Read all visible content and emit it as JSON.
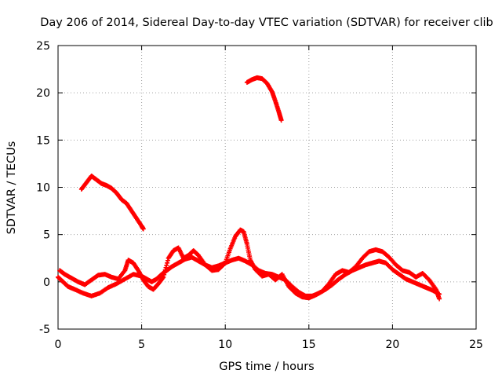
{
  "chart_data": {
    "type": "scatter",
    "title": "Day 206 of 2014, Sidereal Day-to-day VTEC variation (SDTVAR) for receiver clib",
    "xlabel": "GPS time / hours",
    "ylabel": "SDTVAR / TECUs",
    "xlim": [
      0,
      25
    ],
    "ylim": [
      -5,
      25
    ],
    "xticks": [
      0,
      5,
      10,
      15,
      20,
      25
    ],
    "yticks": [
      -5,
      0,
      5,
      10,
      15,
      20,
      25
    ],
    "grid": true,
    "marker": "+",
    "color": "#ff0000",
    "series": [
      {
        "name": "track-1",
        "points": [
          [
            0.0,
            0.5
          ],
          [
            0.3,
            0.0
          ],
          [
            0.6,
            -0.5
          ],
          [
            1.0,
            -0.8
          ],
          [
            1.5,
            -1.2
          ],
          [
            2.0,
            -1.5
          ],
          [
            2.5,
            -1.2
          ],
          [
            3.0,
            -0.6
          ],
          [
            3.5,
            -0.2
          ],
          [
            4.0,
            0.3
          ],
          [
            4.5,
            0.8
          ],
          [
            5.0,
            0.6
          ],
          [
            5.3,
            0.3
          ],
          [
            5.6,
            0.0
          ],
          [
            5.9,
            0.3
          ],
          [
            6.2,
            0.8
          ],
          [
            6.5,
            1.2
          ],
          [
            6.8,
            1.6
          ],
          [
            7.2,
            2.0
          ],
          [
            7.6,
            2.4
          ],
          [
            8.0,
            2.6
          ],
          [
            8.4,
            2.2
          ],
          [
            8.8,
            1.8
          ],
          [
            9.2,
            1.5
          ],
          [
            9.6,
            1.7
          ],
          [
            10.0,
            2.0
          ],
          [
            10.4,
            2.3
          ],
          [
            10.8,
            2.5
          ],
          [
            11.2,
            2.2
          ],
          [
            11.6,
            1.8
          ],
          [
            12.0,
            1.2
          ],
          [
            12.4,
            0.9
          ],
          [
            12.8,
            0.8
          ],
          [
            13.2,
            0.5
          ],
          [
            13.6,
            0.2
          ],
          [
            14.0,
            -0.5
          ],
          [
            14.4,
            -1.1
          ],
          [
            14.8,
            -1.5
          ],
          [
            15.2,
            -1.5
          ],
          [
            15.6,
            -1.2
          ],
          [
            16.0,
            -0.8
          ],
          [
            16.4,
            -0.3
          ],
          [
            16.8,
            0.3
          ],
          [
            17.2,
            0.8
          ],
          [
            17.6,
            1.2
          ],
          [
            18.0,
            1.5
          ],
          [
            18.4,
            1.8
          ],
          [
            18.8,
            2.0
          ],
          [
            19.2,
            2.2
          ],
          [
            19.6,
            2.0
          ],
          [
            20.0,
            1.3
          ],
          [
            20.4,
            0.8
          ],
          [
            20.8,
            0.3
          ],
          [
            21.2,
            0.0
          ],
          [
            21.6,
            -0.3
          ],
          [
            22.0,
            -0.6
          ],
          [
            22.4,
            -0.9
          ],
          [
            22.8,
            -1.3
          ]
        ]
      },
      {
        "name": "track-2",
        "points": [
          [
            0.1,
            1.2
          ],
          [
            0.4,
            0.8
          ],
          [
            0.8,
            0.4
          ],
          [
            1.2,
            0.0
          ],
          [
            1.6,
            -0.3
          ],
          [
            2.0,
            0.2
          ],
          [
            2.4,
            0.7
          ],
          [
            2.8,
            0.8
          ],
          [
            3.2,
            0.5
          ],
          [
            3.6,
            0.3
          ],
          [
            4.0,
            1.2
          ],
          [
            4.2,
            2.3
          ],
          [
            4.5,
            2.0
          ],
          [
            4.8,
            1.2
          ],
          [
            5.1,
            0.2
          ],
          [
            5.4,
            -0.5
          ],
          [
            5.7,
            -0.8
          ],
          [
            6.0,
            -0.2
          ],
          [
            6.3,
            0.5
          ],
          [
            6.6,
            2.5
          ],
          [
            6.9,
            3.3
          ],
          [
            7.2,
            3.6
          ],
          [
            7.5,
            2.5
          ],
          [
            7.8,
            2.8
          ],
          [
            8.1,
            3.3
          ],
          [
            8.4,
            2.8
          ],
          [
            8.8,
            1.8
          ],
          [
            9.2,
            1.2
          ],
          [
            9.6,
            1.3
          ],
          [
            10.0,
            2.0
          ],
          [
            10.3,
            3.5
          ],
          [
            10.6,
            4.8
          ],
          [
            10.9,
            5.5
          ],
          [
            11.1,
            5.3
          ],
          [
            11.3,
            4.0
          ],
          [
            11.5,
            2.3
          ],
          [
            11.8,
            1.3
          ],
          [
            12.2,
            0.6
          ],
          [
            12.6,
            0.8
          ],
          [
            13.0,
            0.2
          ],
          [
            13.4,
            0.8
          ],
          [
            13.8,
            -0.5
          ],
          [
            14.2,
            -1.2
          ],
          [
            14.6,
            -1.6
          ],
          [
            15.0,
            -1.7
          ],
          [
            15.4,
            -1.4
          ],
          [
            15.8,
            -1.0
          ],
          [
            16.2,
            -0.2
          ],
          [
            16.6,
            0.8
          ],
          [
            17.0,
            1.2
          ],
          [
            17.4,
            1.0
          ],
          [
            17.8,
            1.6
          ],
          [
            18.2,
            2.5
          ],
          [
            18.6,
            3.2
          ],
          [
            19.0,
            3.4
          ],
          [
            19.4,
            3.2
          ],
          [
            19.8,
            2.6
          ],
          [
            20.2,
            1.8
          ],
          [
            20.6,
            1.2
          ],
          [
            21.0,
            1.0
          ],
          [
            21.4,
            0.5
          ],
          [
            21.8,
            0.9
          ],
          [
            22.2,
            0.2
          ],
          [
            22.6,
            -0.8
          ],
          [
            22.8,
            -1.8
          ]
        ]
      },
      {
        "name": "track-3",
        "points": [
          [
            1.4,
            9.8
          ],
          [
            1.7,
            10.5
          ],
          [
            2.0,
            11.2
          ],
          [
            2.3,
            10.8
          ],
          [
            2.6,
            10.4
          ],
          [
            2.9,
            10.2
          ],
          [
            3.2,
            9.9
          ],
          [
            3.5,
            9.4
          ],
          [
            3.8,
            8.7
          ],
          [
            4.1,
            8.3
          ],
          [
            4.4,
            7.5
          ],
          [
            4.7,
            6.7
          ],
          [
            5.0,
            5.9
          ],
          [
            5.1,
            5.6
          ]
        ]
      },
      {
        "name": "track-4",
        "points": [
          [
            11.3,
            21.1
          ],
          [
            11.6,
            21.4
          ],
          [
            11.9,
            21.6
          ],
          [
            12.2,
            21.5
          ],
          [
            12.5,
            21.0
          ],
          [
            12.8,
            20.1
          ],
          [
            13.0,
            19.1
          ],
          [
            13.2,
            18.0
          ],
          [
            13.35,
            17.1
          ]
        ]
      }
    ]
  }
}
